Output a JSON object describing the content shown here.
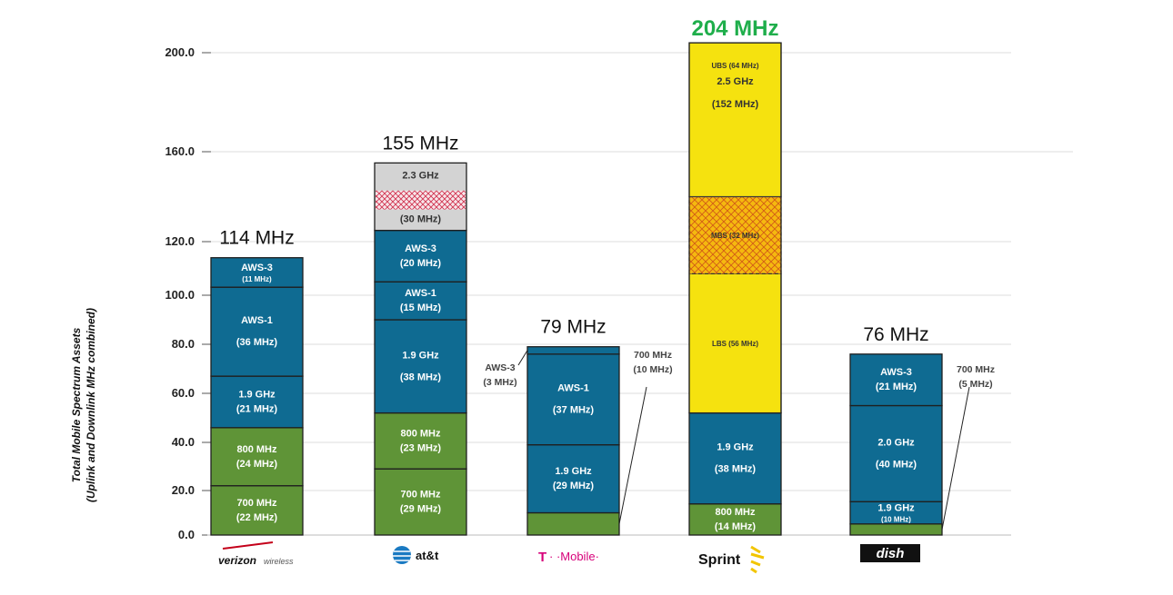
{
  "chart_data": {
    "type": "bar",
    "stacked": true,
    "ylabel_line1": "Total Mobile Spectrum Assets",
    "ylabel_line2": "(Uplink and Downlink MHz combined)",
    "ylim": [
      0,
      200
    ],
    "y_tick_labels": [
      "0.0",
      "20.0",
      "40.0",
      "60.0",
      "80.0",
      "100.0",
      "120.0",
      "160.0",
      "200.0"
    ],
    "grid": true,
    "colors": {
      "blue": "#0f6b92",
      "green": "#5f9437",
      "yellow": "#f5e20f",
      "gray": "#d3d3d3",
      "total_green": "#1fae4b"
    },
    "carriers": [
      {
        "name": "Verizon Wireless",
        "total_label": "114 MHz",
        "segments": [
          {
            "band": "700 MHz",
            "mhz": 22,
            "label": "700 MHz",
            "sublabel": "(22 MHz)",
            "color": "green"
          },
          {
            "band": "800 MHz",
            "mhz": 24,
            "label": "800 MHz",
            "sublabel": "(24 MHz)",
            "color": "green"
          },
          {
            "band": "1.9 GHz",
            "mhz": 21,
            "label": "1.9 GHz",
            "sublabel": "(21 MHz)",
            "color": "blue"
          },
          {
            "band": "AWS-1",
            "mhz": 36,
            "label": "AWS-1",
            "sublabel": "(36 MHz)",
            "color": "blue"
          },
          {
            "band": "AWS-3",
            "mhz": 11,
            "label": "AWS-3",
            "sublabel": "(11 MHz)",
            "color": "blue"
          }
        ]
      },
      {
        "name": "AT&T",
        "total_label": "155 MHz",
        "segments": [
          {
            "band": "700 MHz",
            "mhz": 29,
            "label": "700 MHz",
            "sublabel": "(29 MHz)",
            "color": "green"
          },
          {
            "band": "800 MHz",
            "mhz": 23,
            "label": "800 MHz",
            "sublabel": "(23 MHz)",
            "color": "green"
          },
          {
            "band": "1.9 GHz",
            "mhz": 38,
            "label": "1.9 GHz",
            "sublabel": "(38 MHz)",
            "color": "blue"
          },
          {
            "band": "AWS-1",
            "mhz": 15,
            "label": "AWS-1",
            "sublabel": "(15 MHz)",
            "color": "blue"
          },
          {
            "band": "AWS-3",
            "mhz": 20,
            "label": "AWS-3",
            "sublabel": "(20 MHz)",
            "color": "blue"
          },
          {
            "band": "2.3 GHz",
            "mhz": 30,
            "label": "2.3 GHz",
            "sublabel": "(30 MHz)",
            "color": "gray",
            "hatched": true
          }
        ]
      },
      {
        "name": "T-Mobile",
        "total_label": "79 MHz",
        "segments": [
          {
            "band": "700 MHz",
            "mhz": 10,
            "label": "700 MHz",
            "sublabel": "(10 MHz)",
            "color": "green",
            "callout": "right"
          },
          {
            "band": "1.9 GHz",
            "mhz": 29,
            "label": "1.9 GHz",
            "sublabel": "(29 MHz)",
            "color": "blue"
          },
          {
            "band": "AWS-1",
            "mhz": 37,
            "label": "AWS-1",
            "sublabel": "(37 MHz)",
            "color": "blue"
          },
          {
            "band": "AWS-3",
            "mhz": 3,
            "label": "AWS-3",
            "sublabel": "(3 MHz)",
            "color": "blue",
            "callout": "left"
          }
        ]
      },
      {
        "name": "Sprint",
        "total_label": "204 MHz",
        "segments": [
          {
            "band": "800 MHz",
            "mhz": 14,
            "label": "800 MHz",
            "sublabel": "(14 MHz)",
            "color": "green"
          },
          {
            "band": "1.9 GHz",
            "mhz": 38,
            "label": "1.9 GHz",
            "sublabel": "(38 MHz)",
            "color": "blue"
          },
          {
            "band": "2.5 GHz",
            "mhz": 152,
            "label": "2.5 GHz",
            "sublabel": "(152 MHz)",
            "color": "yellow",
            "subbands": [
              {
                "label": "LBS (56 MHz)",
                "mhz": 56
              },
              {
                "label": "MBS (32 MHz)",
                "mhz": 32,
                "hatched": true
              },
              {
                "label": "UBS (64 MHz)",
                "mhz": 64
              }
            ]
          }
        ]
      },
      {
        "name": "Dish",
        "total_label": "76 MHz",
        "segments": [
          {
            "band": "700 MHz",
            "mhz": 5,
            "label": "700 MHz",
            "sublabel": "(5 MHz)",
            "color": "green",
            "callout": "right"
          },
          {
            "band": "1.9 GHz",
            "mhz": 10,
            "label": "1.9 GHz",
            "sublabel": "(10 MHz)",
            "color": "blue"
          },
          {
            "band": "2.0 GHz",
            "mhz": 40,
            "label": "2.0 GHz",
            "sublabel": "(40 MHz)",
            "color": "blue"
          },
          {
            "band": "AWS-3",
            "mhz": 21,
            "label": "AWS-3",
            "sublabel": "(21 MHz)",
            "color": "blue"
          }
        ]
      }
    ],
    "logos": {
      "verizon": "verizon",
      "verizon_suffix": "wireless",
      "att": "at&t",
      "tmobile_t": "T",
      "tmobile_rest": "· ·Mobile·",
      "sprint": "Sprint",
      "dish": "dish"
    }
  }
}
